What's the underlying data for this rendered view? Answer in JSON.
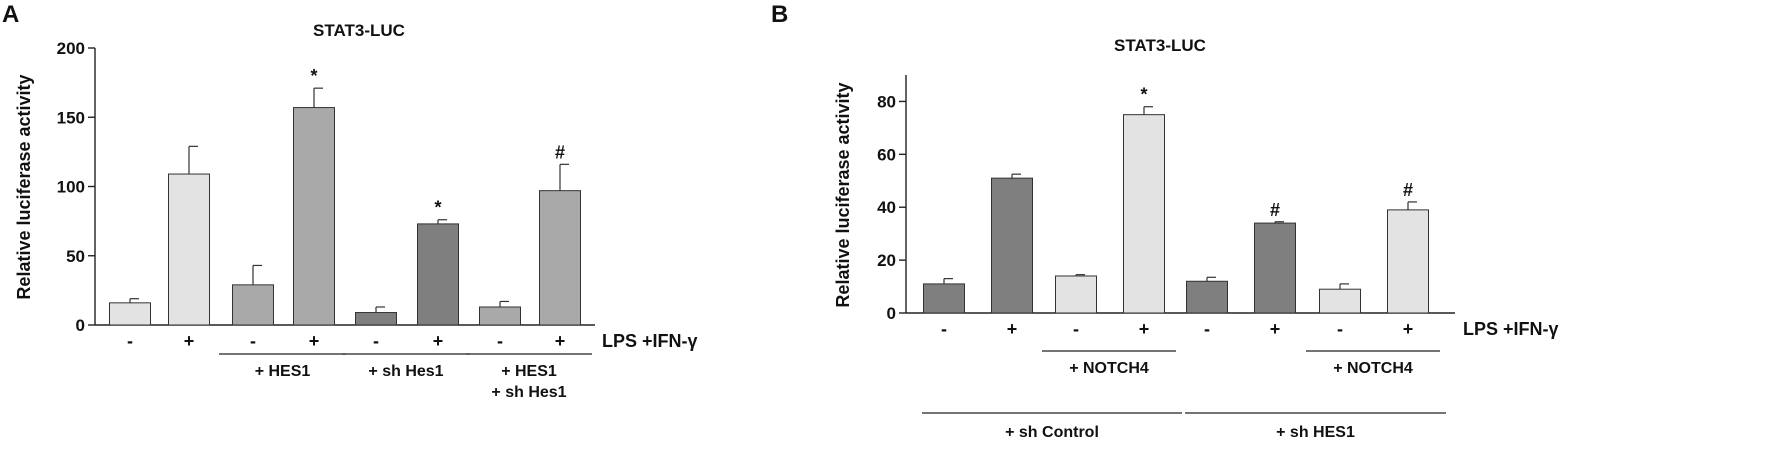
{
  "chart_data": [
    {
      "type": "bar",
      "panel": "A",
      "title": "STAT3-LUC",
      "ylabel": "Relative luciferase activity",
      "ylim": [
        0,
        200
      ],
      "yticks": [
        0,
        50,
        100,
        150,
        200
      ],
      "treatment_label": "LPS +IFN-γ",
      "treatment": [
        "-",
        "+",
        "-",
        "+",
        "-",
        "+",
        "-",
        "+"
      ],
      "values": [
        16,
        109,
        29,
        157,
        9,
        73,
        13,
        97
      ],
      "errors": [
        3,
        20,
        14,
        14,
        4,
        3,
        4,
        19
      ],
      "significance": [
        "",
        "",
        "",
        "*",
        "",
        "*",
        "",
        "#"
      ],
      "bar_colors": [
        "#e3e3e3",
        "#e3e3e3",
        "#a9a9a9",
        "#a9a9a9",
        "#7f7f7f",
        "#7f7f7f",
        "#a9a9a9",
        "#a9a9a9"
      ],
      "groups": [
        {
          "lines": [
            "+ HES1"
          ],
          "bars": [
            2,
            3
          ]
        },
        {
          "lines": [
            "+ sh  Hes1"
          ],
          "bars": [
            4,
            5
          ]
        },
        {
          "lines": [
            "+ HES1",
            "+ sh  Hes1"
          ],
          "bars": [
            6,
            7
          ]
        }
      ],
      "supergroups": []
    },
    {
      "type": "bar",
      "panel": "B",
      "title": "STAT3-LUC",
      "ylabel": "Relative luciferase activity",
      "ylim": [
        0,
        90
      ],
      "yticks": [
        0,
        20,
        40,
        60,
        80
      ],
      "treatment_label": "LPS +IFN-γ",
      "treatment": [
        "-",
        "+",
        "-",
        "+",
        "-",
        "+",
        "-",
        "+"
      ],
      "values": [
        11,
        51,
        14,
        75,
        12,
        34,
        9,
        39
      ],
      "errors": [
        2,
        1.5,
        0.5,
        3,
        1.5,
        0.5,
        2,
        3
      ],
      "significance": [
        "",
        "",
        "",
        "*",
        "",
        "#",
        "",
        "#"
      ],
      "bar_colors": [
        "#7f7f7f",
        "#7f7f7f",
        "#e3e3e3",
        "#e3e3e3",
        "#7f7f7f",
        "#7f7f7f",
        "#e3e3e3",
        "#e3e3e3"
      ],
      "groups": [
        {
          "lines": [
            "+ NOTCH4"
          ],
          "bars": [
            2,
            3
          ]
        },
        {
          "lines": [
            "+ NOTCH4"
          ],
          "bars": [
            6,
            7
          ]
        }
      ],
      "supergroups": [
        {
          "label": "+ sh  Control",
          "bars": [
            0,
            3
          ]
        },
        {
          "label": "+ sh  HES1",
          "bars": [
            4,
            7
          ]
        }
      ]
    }
  ]
}
